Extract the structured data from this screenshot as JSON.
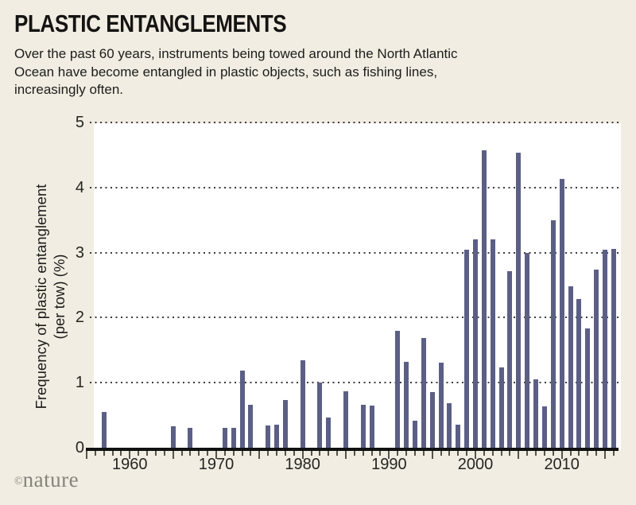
{
  "header": {
    "title": "PLASTIC ENTANGLEMENTS",
    "subtitle_lines": [
      "Over the past 60 years, instruments being towed around the North Atlantic",
      "Ocean have become entangled in plastic objects, such as fishing lines,",
      "increasingly often."
    ]
  },
  "footer": {
    "credit_symbol": "©",
    "credit_name": "nature"
  },
  "theme": {
    "background": "#f1ede2",
    "plot_background": "#ffffff",
    "bar_color": "#5c5f85",
    "axis_color": "#111111",
    "grid_dot_color": "#3c3a36",
    "tick_color": "#55534e",
    "text_color": "#1d1c1a",
    "credit_color": "#85837c"
  },
  "chart_data": {
    "type": "bar",
    "title": "PLASTIC ENTANGLEMENTS",
    "xlabel": "",
    "ylabel_lines": [
      "Frequency of plastic entanglement",
      "(per tow) (%)"
    ],
    "ylim": [
      0,
      5
    ],
    "xlim": [
      1955,
      2016.5
    ],
    "grid": "horizontal-dotted",
    "legend": "none",
    "ytick_labels": [
      "0",
      "1",
      "2",
      "3",
      "4",
      "5"
    ],
    "yticks": [
      0,
      1,
      2,
      3,
      4,
      5
    ],
    "xtick_labeled_years": [
      1960,
      1970,
      1980,
      1990,
      2000,
      2010
    ],
    "xtick_labels": [
      "1960",
      "1970",
      "1980",
      "1990",
      "2000",
      "2010"
    ],
    "minor_ticks": "every year 1955-2016, longer at multiples of 5",
    "x": [
      1957,
      1965,
      1967,
      1971,
      1972,
      1973,
      1974,
      1976,
      1977,
      1978,
      1980,
      1982,
      1983,
      1985,
      1987,
      1988,
      1991,
      1992,
      1993,
      1994,
      1995,
      1996,
      1997,
      1998,
      1999,
      2000,
      2001,
      2002,
      2003,
      2004,
      2005,
      2006,
      2007,
      2008,
      2009,
      2010,
      2011,
      2012,
      2013,
      2014,
      2015,
      2016
    ],
    "values": [
      0.55,
      0.33,
      0.3,
      0.3,
      0.3,
      1.18,
      0.66,
      0.34,
      0.35,
      0.73,
      1.35,
      1.0,
      0.46,
      0.87,
      0.66,
      0.65,
      1.8,
      1.32,
      0.42,
      1.69,
      0.85,
      1.31,
      0.68,
      0.35,
      3.05,
      3.2,
      4.57,
      3.2,
      1.24,
      2.71,
      4.53,
      3.0,
      1.05,
      0.64,
      3.5,
      4.13,
      2.48,
      2.29,
      1.83,
      2.74,
      3.05,
      3.06
    ]
  }
}
